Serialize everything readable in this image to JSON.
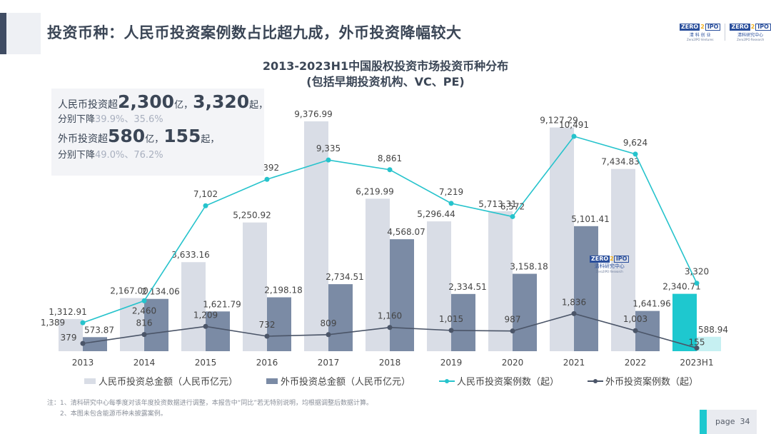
{
  "header": {
    "title": "投资币种：人民币投资案例数占比超九成，外币投资降幅较大",
    "logos": [
      {
        "badge_left": "ZERO",
        "badge_mid": "2",
        "badge_right": "IPO",
        "cn": "清 科 创 业",
        "en": "Zero2IPO Ventures"
      },
      {
        "badge_left": "ZERO",
        "badge_mid": "2",
        "badge_right": "IPO",
        "cn": "清科研究中心",
        "en": "Zero2IPO Research"
      }
    ]
  },
  "summary": {
    "rmb_prefix": "人民币投资超",
    "rmb_amount": "2,300",
    "rmb_amount_unit": "亿，",
    "rmb_cases": "3,320",
    "rmb_cases_unit": "起，",
    "rmb_drop_label": "分别下降",
    "rmb_drop_values": "39.9%、35.6%",
    "fx_prefix": "外币投资超",
    "fx_amount": "580",
    "fx_amount_unit": "亿，",
    "fx_cases": "155",
    "fx_cases_unit": "起，",
    "fx_drop_label": "分别下降",
    "fx_drop_values": "49.0%、76.2%"
  },
  "watermark": {
    "badge_left": "ZERO",
    "badge_mid": "2",
    "badge_right": "IPO",
    "cn": "清科研究中心",
    "en": "Zero2IPO Research"
  },
  "chart_data": {
    "type": "bar",
    "title": "2013-2023H1中国股权投资市场投资币种分布",
    "subtitle": "(包括早期投资机构、VC、PE)",
    "categories": [
      "2013",
      "2014",
      "2015",
      "2016",
      "2017",
      "2018",
      "2019",
      "2020",
      "2021",
      "2022",
      "2023H1"
    ],
    "series": [
      {
        "name": "人民币投资总金额（人民币亿元）",
        "kind": "bar",
        "axis": "amount",
        "color": "#d9dde6",
        "highlight_color": "#1ec8cf",
        "values": [
          1312.91,
          2167.0,
          3633.16,
          5250.92,
          9376.99,
          6219.99,
          5296.44,
          5713.31,
          9127.29,
          7434.83,
          2340.71
        ],
        "labels": [
          "1,312.91",
          "2,167.00",
          "3,633.16",
          "5,250.92",
          "9,376.99",
          "6,219.99",
          "5,296.44",
          "5,713.31",
          "9,127.29",
          "7,434.83",
          "2,340.71"
        ]
      },
      {
        "name": "外币投资总金额（人民币亿元）",
        "kind": "bar",
        "axis": "amount",
        "color": "#7b8ba5",
        "highlight_color": "#c6f0f2",
        "values": [
          573.87,
          2134.06,
          1621.79,
          2198.18,
          2734.51,
          4568.07,
          2334.51,
          3158.18,
          5101.41,
          1641.96,
          588.94
        ],
        "labels": [
          "573.87",
          "2,134.06",
          "1,621.79",
          "2,198.18",
          "2,734.51",
          "4,568.07",
          "2,334.51",
          "3,158.18",
          "5,101.41",
          "1,641.96",
          "588.94"
        ]
      },
      {
        "name": "人民币投资案例数（起）",
        "kind": "line",
        "axis": "cases",
        "color": "#26c3cc",
        "values": [
          1389,
          2460,
          7102,
          8392,
          9335,
          8861,
          7219,
          6572,
          10491,
          9624,
          3320
        ],
        "labels": [
          "1,389",
          "2,460",
          "7,102",
          "8,392",
          "9,335",
          "8,861",
          "7,219",
          "6,572",
          "10,491",
          "9,624",
          "3,320"
        ]
      },
      {
        "name": "外币投资案例数（起）",
        "kind": "line",
        "axis": "cases",
        "color": "#4b5568",
        "values": [
          379,
          816,
          1209,
          732,
          809,
          1160,
          1015,
          987,
          1836,
          1003,
          155
        ],
        "labels": [
          "379",
          "816",
          "1,209",
          "732",
          "809",
          "1,160",
          "1,015",
          "987",
          "1,836",
          "1,003",
          "155"
        ]
      }
    ],
    "amount_axis_range": [
      0,
      9400
    ],
    "cases_axis_range": [
      0,
      11200
    ],
    "grid": false,
    "legend": "bottom"
  },
  "notes": [
    "注：1、清科研究中心每季度对该年度投资数据进行调整，本报告中“同比”若无特别说明，均根据调整后数据计算。",
    "2、本图未包含能源币种未披露案例。"
  ],
  "footer": {
    "page_label": "page",
    "page_number": "34"
  }
}
